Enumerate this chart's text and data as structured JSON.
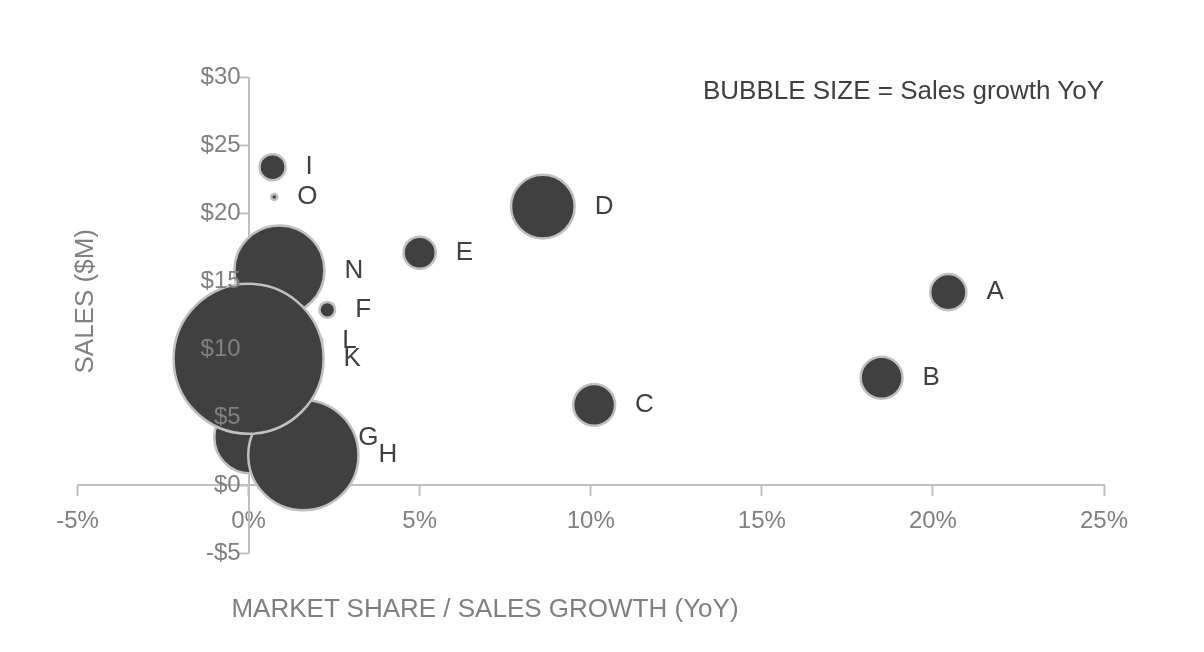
{
  "chart_data": {
    "type": "bubble",
    "series": [
      {
        "name": "K",
        "color": "#404040",
        "x": [
          0.0
        ],
        "values": [
          9.3
        ],
        "sizes": [
          1
        ]
      },
      {
        "name": "H",
        "color": "#404040",
        "x": [
          1.6
        ],
        "values": [
          2.2
        ],
        "sizes": [
          0.54
        ]
      },
      {
        "name": "G",
        "color": "#404040",
        "x": [
          0.05
        ],
        "values": [
          3.5
        ],
        "sizes": [
          0.23
        ]
      },
      {
        "name": "N",
        "color": "#404040",
        "x": [
          0.9
        ],
        "values": [
          15.8
        ],
        "sizes": [
          0.36
        ]
      },
      {
        "name": "A",
        "color": "#404040",
        "x": [
          20.45
        ],
        "values": [
          14.2
        ],
        "sizes": [
          0.058
        ]
      },
      {
        "name": "B",
        "color": "#404040",
        "x": [
          18.5
        ],
        "values": [
          7.9
        ],
        "sizes": [
          0.078
        ]
      },
      {
        "name": "C",
        "color": "#404040",
        "x": [
          10.1
        ],
        "values": [
          5.9
        ],
        "sizes": [
          0.078
        ]
      },
      {
        "name": "D",
        "color": "#404040",
        "x": [
          8.6
        ],
        "values": [
          20.5
        ],
        "sizes": [
          0.18
        ]
      },
      {
        "name": "E",
        "color": "#404040",
        "x": [
          5.0
        ],
        "values": [
          17.1
        ],
        "sizes": [
          0.046
        ]
      },
      {
        "name": "F",
        "color": "#404040",
        "x": [
          2.3
        ],
        "values": [
          12.9
        ],
        "sizes": [
          0.011
        ]
      },
      {
        "name": "I",
        "color": "#404040",
        "x": [
          0.7
        ],
        "values": [
          23.4
        ],
        "sizes": [
          0.03
        ]
      },
      {
        "name": "O",
        "color": "#404040",
        "x": [
          0.75
        ],
        "values": [
          21.2
        ],
        "sizes": [
          0.0016
        ]
      },
      {
        "name": "L",
        "color": "#404040",
        "x": [
          2.0
        ],
        "values": [
          10.6
        ],
        "sizes": [
          0.005
        ]
      }
    ],
    "marker": "circle",
    "xlabel": "MARKET SHARE / SALES GROWTH (YoY)",
    "ylabel": "SALES ($M)",
    "xlim": [
      -5,
      25
    ],
    "xticks": [
      {
        "value": -5,
        "label": "-5%"
      },
      {
        "value": 0,
        "label": "0%"
      },
      {
        "value": 5,
        "label": "5%"
      },
      {
        "value": 10,
        "label": "10%"
      },
      {
        "value": 15,
        "label": "15%"
      },
      {
        "value": 20,
        "label": "20%"
      },
      {
        "value": 25,
        "label": "25%"
      }
    ],
    "ylim": [
      -5,
      30
    ],
    "yticks": [
      {
        "value": -5,
        "label": "-$5"
      },
      {
        "value": 0,
        "label": "$0"
      },
      {
        "value": 5,
        "label": "$5"
      },
      {
        "value": 10,
        "label": "$10"
      },
      {
        "value": 15,
        "label": "$15"
      },
      {
        "value": 20,
        "label": "$20"
      },
      {
        "value": 25,
        "label": "$25"
      },
      {
        "value": 30,
        "label": "$30"
      }
    ],
    "annotations": [
      "BUBBLE SIZE = Sales growth YoY"
    ]
  }
}
